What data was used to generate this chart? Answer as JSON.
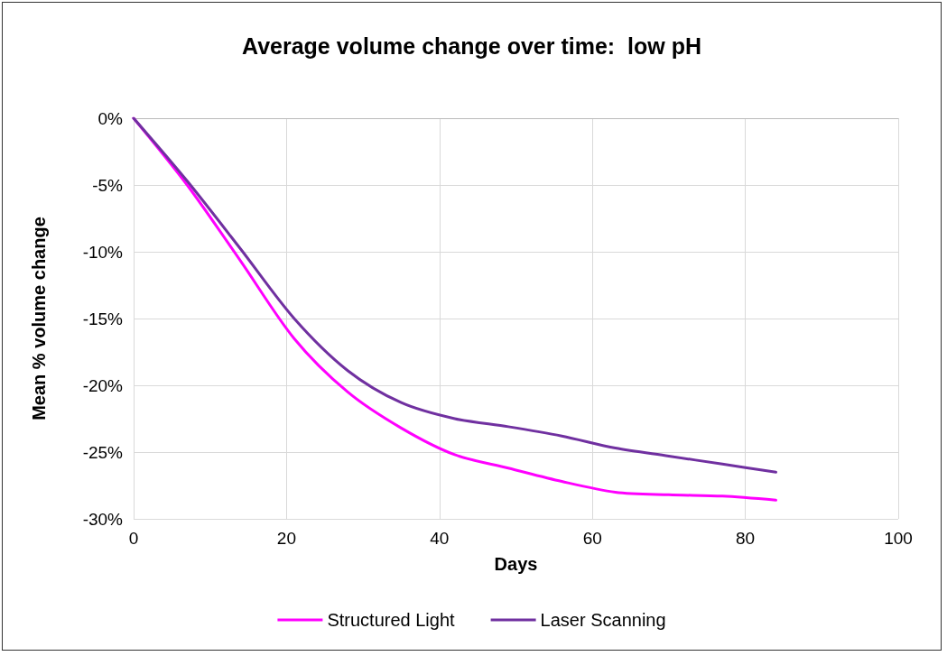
{
  "chart_data": {
    "type": "line",
    "title": "Average volume change over time:  low pH",
    "xlabel": "Days",
    "ylabel": "Mean % volume change",
    "x": [
      0,
      7,
      14,
      21,
      28,
      35,
      42,
      49,
      56,
      63,
      70,
      77,
      84
    ],
    "series": [
      {
        "name": "Structured Light",
        "color": "#ff00ff",
        "values": [
          0,
          -5.0,
          -10.7,
          -16.5,
          -20.5,
          -23.2,
          -25.2,
          -26.2,
          -27.2,
          -28.0,
          -28.2,
          -28.3,
          -28.6
        ]
      },
      {
        "name": "Laser Scanning",
        "color": "#7030a0",
        "values": [
          0,
          -4.7,
          -9.8,
          -15.0,
          -18.9,
          -21.3,
          -22.5,
          -23.1,
          -23.8,
          -24.7,
          -25.3,
          -25.9,
          -26.5
        ]
      }
    ],
    "xlim": [
      0,
      100
    ],
    "xticks": [
      0,
      20,
      40,
      60,
      80,
      100
    ],
    "ylim": [
      -30,
      0
    ],
    "yticks": [
      {
        "value": -30,
        "label": "-30%"
      },
      {
        "value": -25,
        "label": "-25%"
      },
      {
        "value": -20,
        "label": "-20%"
      },
      {
        "value": -15,
        "label": "-15%"
      },
      {
        "value": -10,
        "label": "-10%"
      },
      {
        "value": -5,
        "label": "-5%"
      },
      {
        "value": 0,
        "label": "0%"
      }
    ],
    "grid": true,
    "legend": "bottom",
    "marker": "none",
    "line_style": "solid"
  }
}
